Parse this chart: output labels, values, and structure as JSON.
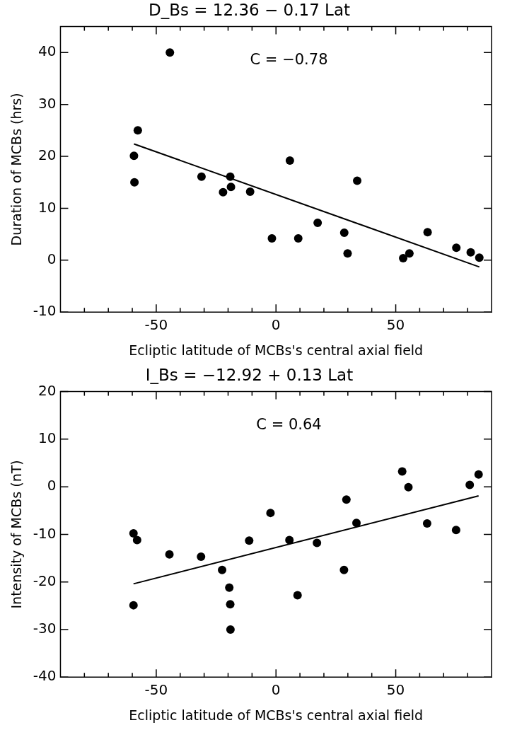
{
  "chart_data": [
    {
      "type": "scatter",
      "title": "D_Bs = 12.36 − 0.17 Lat",
      "xlabel": "Ecliptic latitude of MCBs's central axial field",
      "ylabel": "Duration of MCBs (hrs)",
      "annotations": [
        "C = −0.78"
      ],
      "xlim": [
        -90,
        90
      ],
      "ylim": [
        -10,
        45
      ],
      "xticks": [
        {
          "value": -80,
          "label": null
        },
        {
          "value": -70,
          "label": null
        },
        {
          "value": -60,
          "label": null
        },
        -50,
        {
          "value": -40,
          "label": null
        },
        {
          "value": -30,
          "label": null
        },
        {
          "value": -20,
          "label": null
        },
        {
          "value": -10,
          "label": null
        },
        0,
        {
          "value": 10,
          "label": null
        },
        {
          "value": 20,
          "label": null
        },
        {
          "value": 30,
          "label": null
        },
        {
          "value": 40,
          "label": null
        },
        50,
        {
          "value": 60,
          "label": null
        },
        {
          "value": 70,
          "label": null
        },
        {
          "value": 80,
          "label": null
        }
      ],
      "yticks": [
        -10,
        0,
        10,
        20,
        30,
        40
      ],
      "grid": false,
      "legend": false,
      "marker": "circle",
      "series": [
        {
          "color": "#000000",
          "x": [
            -44.3,
            -57.7,
            -59.3,
            -59.1,
            -31.1,
            -22.1,
            -19.1,
            -18.8,
            -10.8,
            -1.7,
            5.8,
            9.3,
            17.4,
            28.5,
            29.9,
            33.9,
            53.1,
            55.7,
            63.3,
            75.3,
            81.3,
            84.9
          ],
          "values": [
            40,
            25,
            20.1,
            15,
            16.1,
            13.1,
            16.1,
            14.1,
            13.2,
            4.2,
            19.2,
            4.2,
            7.2,
            5.3,
            1.3,
            15.3,
            0.4,
            1.3,
            5.4,
            2.4,
            1.5,
            0.5
          ]
        },
        {
          "type": "line",
          "color": "#000000",
          "marker": "none",
          "line_style": "solid",
          "x": [
            -59.3,
            84.9
          ],
          "values": [
            22.4,
            -1.3
          ]
        }
      ]
    },
    {
      "type": "scatter",
      "title": "I_Bs = −12.92 + 0.13 Lat",
      "xlabel": "Ecliptic latitude of MCBs's central axial field",
      "ylabel": "Intensity of MCBs (nT)",
      "annotations": [
        "C = 0.64"
      ],
      "xlim": [
        -90,
        90
      ],
      "ylim": [
        -40,
        20
      ],
      "xticks": [
        {
          "value": -80,
          "label": null
        },
        {
          "value": -70,
          "label": null
        },
        {
          "value": -60,
          "label": null
        },
        -50,
        {
          "value": -40,
          "label": null
        },
        {
          "value": -30,
          "label": null
        },
        {
          "value": -20,
          "label": null
        },
        {
          "value": -10,
          "label": null
        },
        0,
        {
          "value": 10,
          "label": null
        },
        {
          "value": 20,
          "label": null
        },
        {
          "value": 30,
          "label": null
        },
        {
          "value": 40,
          "label": null
        },
        50,
        {
          "value": 60,
          "label": null
        },
        {
          "value": 70,
          "label": null
        },
        {
          "value": 80,
          "label": null
        }
      ],
      "yticks": [
        -40,
        -30,
        -20,
        -10,
        0,
        10,
        20
      ],
      "grid": false,
      "legend": false,
      "marker": "circle",
      "series": [
        {
          "color": "#000000",
          "x": [
            -59.5,
            -58,
            -44.5,
            -31.3,
            -22.5,
            -19.5,
            -19.1,
            -19,
            -59.5,
            -11.2,
            -2.3,
            5.6,
            9,
            17.1,
            28.4,
            29.4,
            33.6,
            52.7,
            55.3,
            63.1,
            75.2,
            80.9,
            84.6
          ],
          "values": [
            -9.8,
            -11.2,
            -14.2,
            -14.7,
            -17.5,
            -21.2,
            -24.7,
            -30,
            -24.9,
            -11.3,
            -5.5,
            -11.2,
            -22.8,
            -11.8,
            -17.5,
            -2.7,
            -7.6,
            3.2,
            -0.1,
            -7.7,
            -9.1,
            0.4,
            2.6
          ]
        },
        {
          "type": "line",
          "color": "#000000",
          "marker": "none",
          "line_style": "solid",
          "x": [
            -59.5,
            84.6
          ],
          "values": [
            -20.4,
            -1.9
          ]
        }
      ]
    }
  ]
}
